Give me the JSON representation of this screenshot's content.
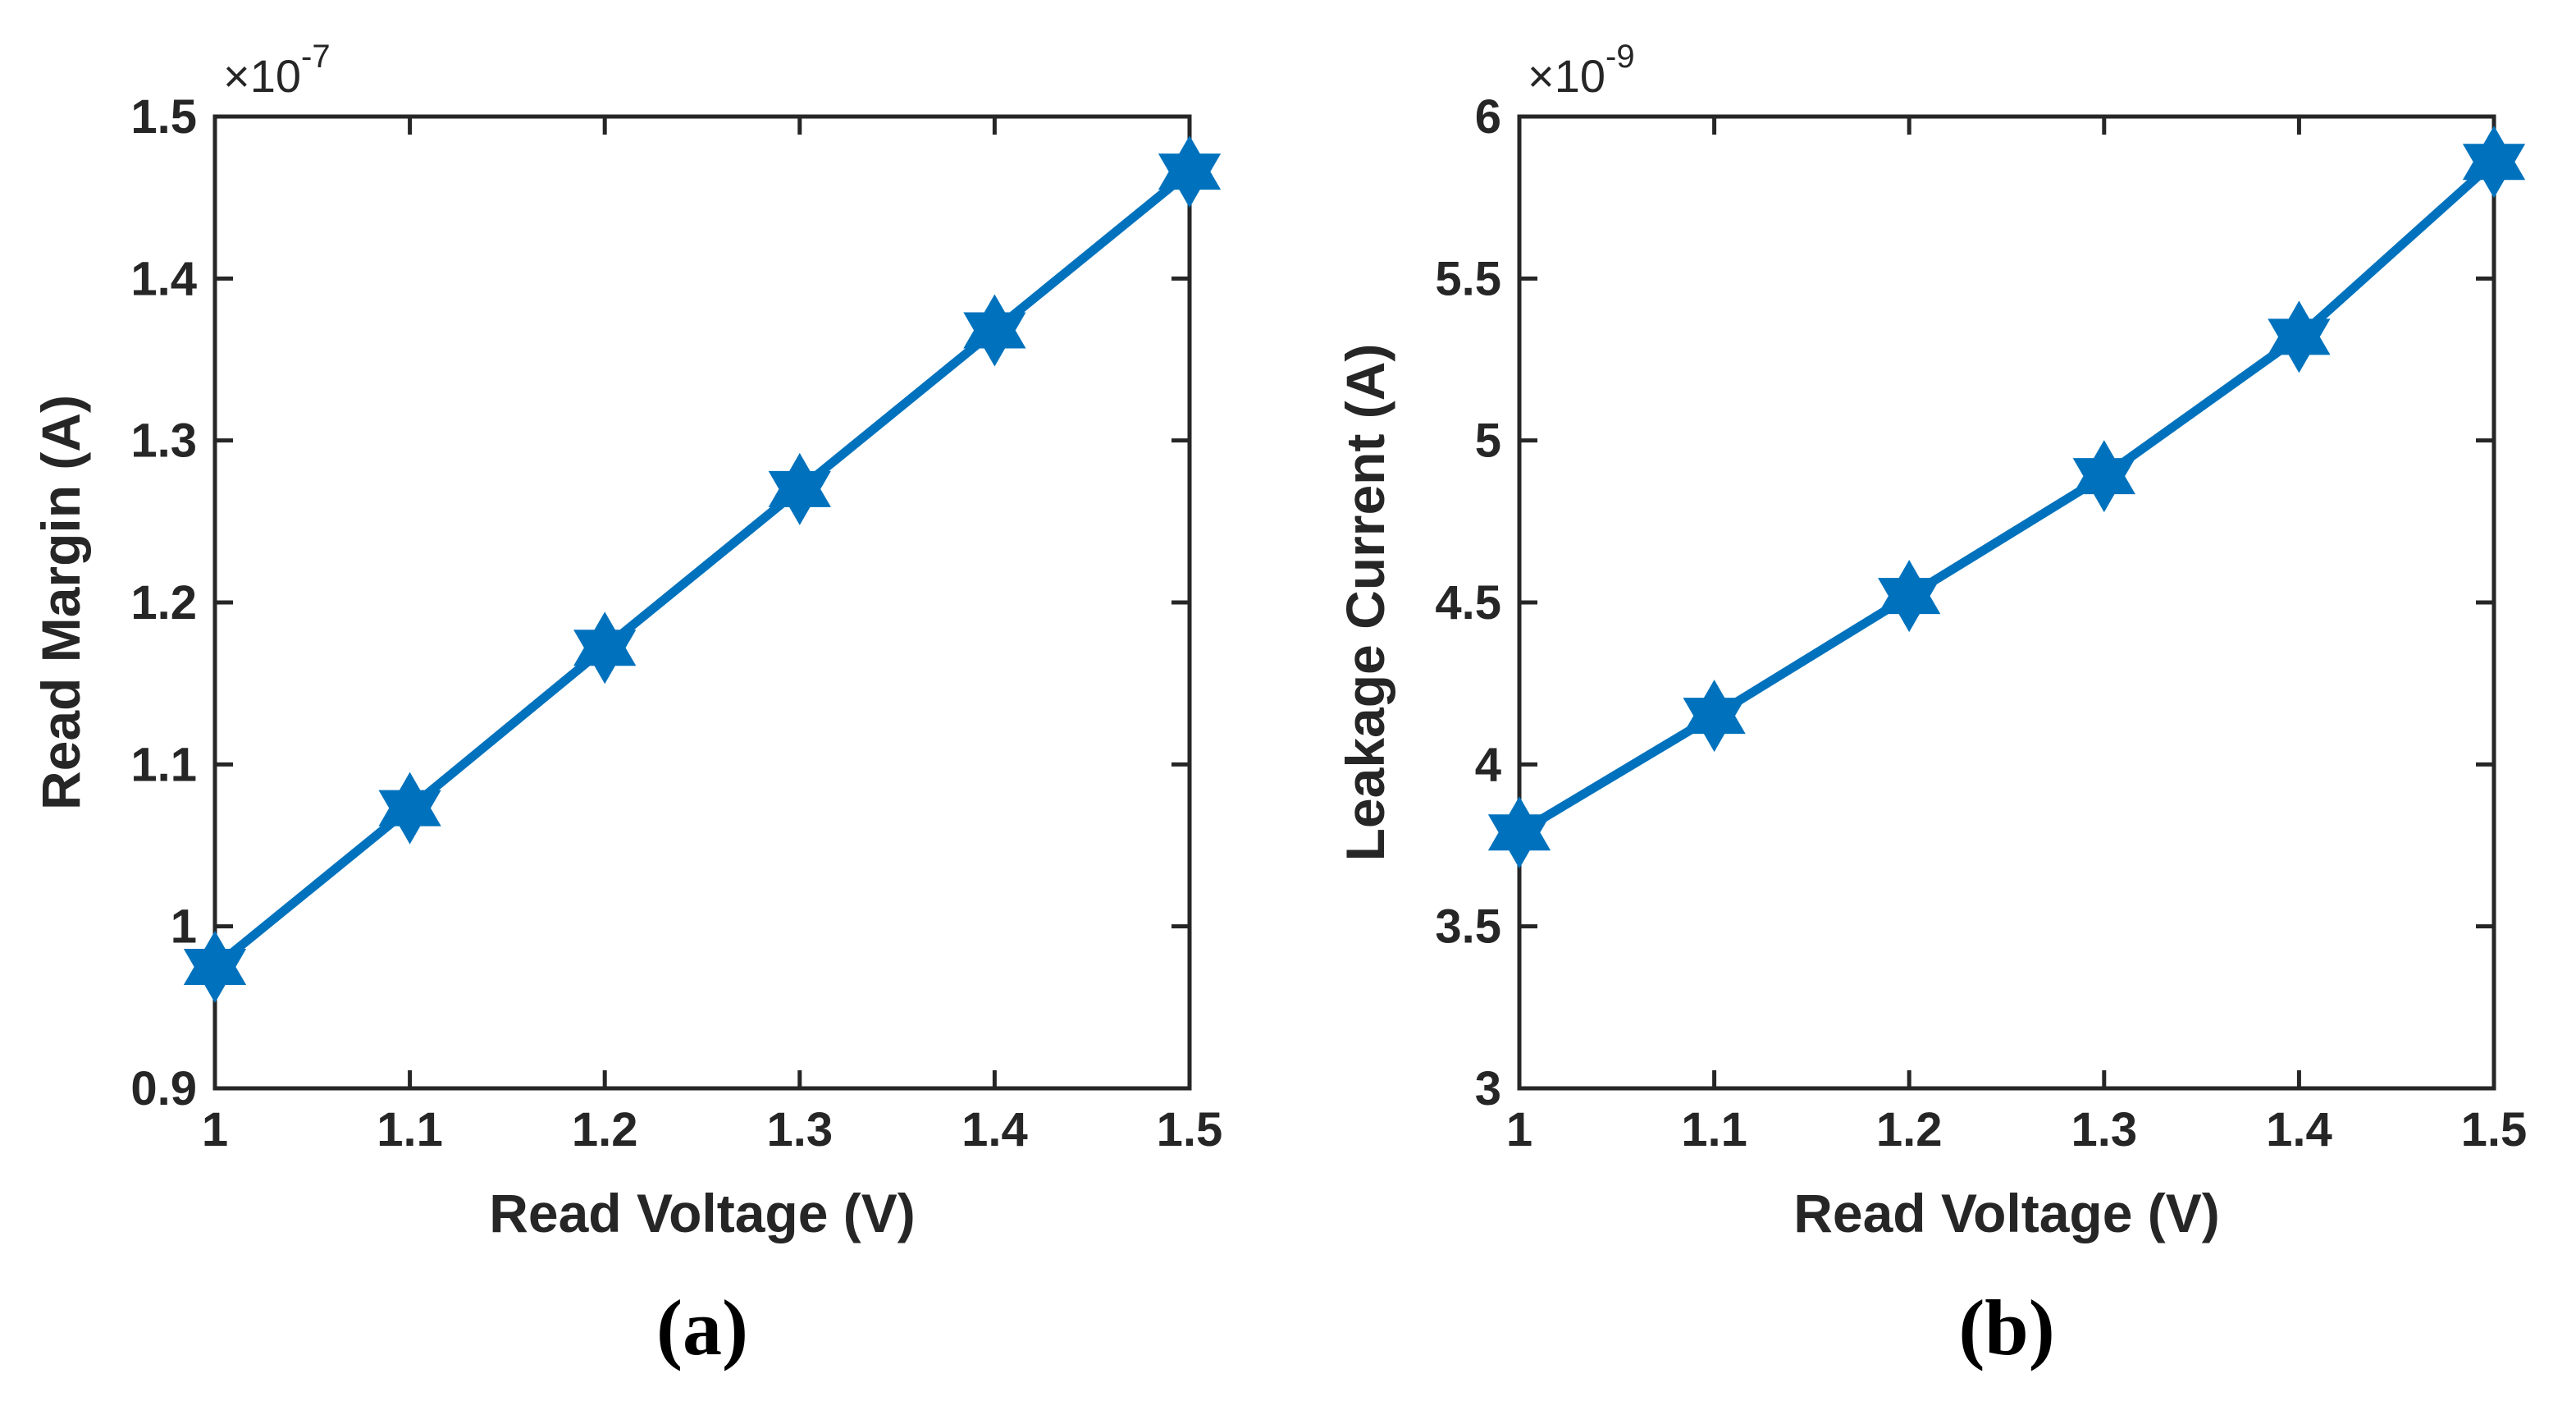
{
  "chart_data": [
    {
      "type": "line",
      "panel_label": "(a)",
      "title": "",
      "xlabel": "Read Voltage (V)",
      "ylabel": "Read Margin (A)",
      "exponent_label": "×10",
      "exponent": "-7",
      "xlim": [
        1,
        1.5
      ],
      "ylim": [
        0.9,
        1.5
      ],
      "xticks": [
        1,
        1.1,
        1.2,
        1.3,
        1.4,
        1.5
      ],
      "xtick_labels": [
        "1",
        "1.1",
        "1.2",
        "1.3",
        "1.4",
        "1.5"
      ],
      "yticks": [
        0.9,
        1.0,
        1.1,
        1.2,
        1.3,
        1.4,
        1.5
      ],
      "ytick_labels": [
        "0.9",
        "1",
        "1.1",
        "1.2",
        "1.3",
        "1.4",
        "1.5"
      ],
      "grid": false,
      "marker": "hexagram",
      "series": [
        {
          "name": "Read Margin",
          "color": "#0072BD",
          "x": [
            1.0,
            1.1,
            1.2,
            1.3,
            1.4,
            1.5
          ],
          "y": [
            0.975,
            1.073,
            1.172,
            1.27,
            1.368,
            1.466
          ]
        }
      ]
    },
    {
      "type": "line",
      "panel_label": "(b)",
      "title": "",
      "xlabel": "Read Voltage (V)",
      "ylabel": "Leakage Current (A)",
      "exponent_label": "×10",
      "exponent": "-9",
      "xlim": [
        1,
        1.5
      ],
      "ylim": [
        3,
        6
      ],
      "xticks": [
        1,
        1.1,
        1.2,
        1.3,
        1.4,
        1.5
      ],
      "xtick_labels": [
        "1",
        "1.1",
        "1.2",
        "1.3",
        "1.4",
        "1.5"
      ],
      "yticks": [
        3,
        3.5,
        4,
        4.5,
        5,
        5.5,
        6
      ],
      "ytick_labels": [
        "3",
        "3.5",
        "4",
        "4.5",
        "5",
        "5.5",
        "6"
      ],
      "grid": false,
      "marker": "hexagram",
      "series": [
        {
          "name": "Leakage Current",
          "color": "#0072BD",
          "x": [
            1.0,
            1.1,
            1.2,
            1.3,
            1.4,
            1.5
          ],
          "y": [
            3.79,
            4.15,
            4.52,
            4.89,
            5.32,
            5.86
          ]
        }
      ]
    }
  ]
}
